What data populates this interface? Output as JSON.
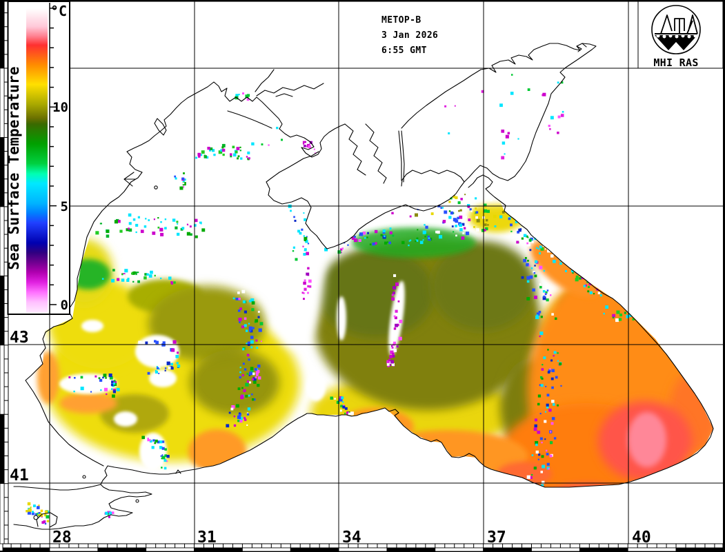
{
  "title_block": {
    "satellite": "METOP-B",
    "date": "3 Jan 2026",
    "time": "6:55 GMT"
  },
  "logo": {
    "caption": "MHI RAS"
  },
  "colorbar": {
    "title": "Sea Surface Temperature",
    "unit": "°C",
    "major_ticks": [
      "10",
      "5",
      "0"
    ]
  },
  "grid": {
    "lat_labels": [
      "43",
      "41"
    ],
    "lon_labels": [
      "28",
      "31",
      "34",
      "37",
      "40"
    ]
  },
  "chart_data": {
    "type": "heatmap",
    "title": "Sea Surface Temperature",
    "units": "°C",
    "scale_range": [
      0,
      15
    ],
    "labeled_scale_ticks": [
      10,
      5,
      0
    ],
    "labeled_lat_gridlines": [
      43,
      41
    ],
    "labeled_lon_gridlines": [
      28,
      31,
      34,
      37,
      40
    ],
    "palette": [
      {
        "temp": 0,
        "color": "#ffc0ff"
      },
      {
        "temp": 1,
        "color": "#e020e0"
      },
      {
        "temp": 2,
        "color": "#700090"
      },
      {
        "temp": 3,
        "color": "#0000b0"
      },
      {
        "temp": 4,
        "color": "#2040ff"
      },
      {
        "temp": 5,
        "color": "#00b4ff"
      },
      {
        "temp": 6,
        "color": "#00e8ff"
      },
      {
        "temp": 7,
        "color": "#00d040"
      },
      {
        "temp": 8,
        "color": "#00a000"
      },
      {
        "temp": 9,
        "color": "#3a6a00"
      },
      {
        "temp": 10,
        "color": "#a8a800"
      },
      {
        "temp": 11,
        "color": "#ffe000"
      },
      {
        "temp": 12,
        "color": "#ff8c00"
      },
      {
        "temp": 13,
        "color": "#ff3030"
      },
      {
        "temp": 14,
        "color": "#ffc8d8"
      },
      {
        "temp": 15,
        "color": "#ffffff"
      }
    ]
  }
}
